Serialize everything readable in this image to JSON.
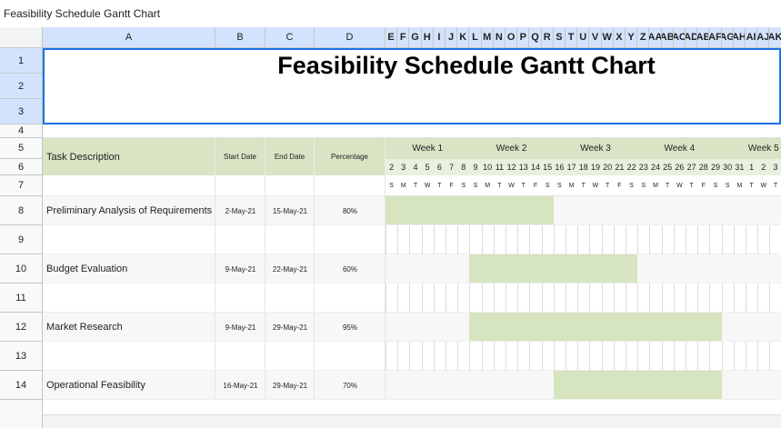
{
  "window_title": "Feasibility Schedule Gantt Chart",
  "columns": [
    "A",
    "B",
    "C",
    "D",
    "E",
    "F",
    "G",
    "H",
    "I",
    "J",
    "K",
    "L",
    "M",
    "N",
    "O",
    "P",
    "Q",
    "R",
    "S",
    "T",
    "U",
    "V",
    "W",
    "X",
    "Y",
    "Z",
    "AA",
    "AB",
    "AC",
    "AD",
    "AE",
    "AF",
    "AG",
    "AH",
    "AI",
    "AJ",
    "AK"
  ],
  "rows": [
    "1",
    "2",
    "3",
    "4",
    "5",
    "6",
    "7",
    "8",
    "9",
    "10",
    "11",
    "12",
    "13",
    "14"
  ],
  "title": "Feasibility Schedule Gantt Chart",
  "header": {
    "task": "Task Description",
    "start": "Start Date",
    "end": "End Date",
    "percentage": "Percentage"
  },
  "weeks": [
    "Week 1",
    "Week 2",
    "Week 3",
    "Week 4",
    "Week 5"
  ],
  "days": [
    "2",
    "3",
    "4",
    "5",
    "6",
    "7",
    "8",
    "9",
    "10",
    "11",
    "12",
    "13",
    "14",
    "15",
    "16",
    "17",
    "18",
    "19",
    "20",
    "21",
    "22",
    "23",
    "24",
    "25",
    "26",
    "27",
    "28",
    "29",
    "30",
    "31",
    "1",
    "2",
    "3"
  ],
  "weekdays": [
    "S",
    "M",
    "T",
    "W",
    "T",
    "F",
    "S",
    "S",
    "M",
    "T",
    "W",
    "T",
    "F",
    "S",
    "S",
    "M",
    "T",
    "W",
    "T",
    "F",
    "S",
    "S",
    "M",
    "T",
    "W",
    "T",
    "F",
    "S",
    "S",
    "M",
    "T",
    "W",
    "T"
  ],
  "tasks": [
    {
      "description": "Preliminary Analysis of Requirements",
      "start": "2-May-21",
      "end": "15-May-21",
      "percentage": "80%"
    },
    {
      "description": "Budget Evaluation",
      "start": "9-May-21",
      "end": "22-May-21",
      "percentage": "60%"
    },
    {
      "description": "Market Research",
      "start": "9-May-21",
      "end": "29-May-21",
      "percentage": "95%"
    },
    {
      "description": "Operational Feasibility",
      "start": "16-May-21",
      "end": "29-May-21",
      "percentage": "70%"
    }
  ]
}
